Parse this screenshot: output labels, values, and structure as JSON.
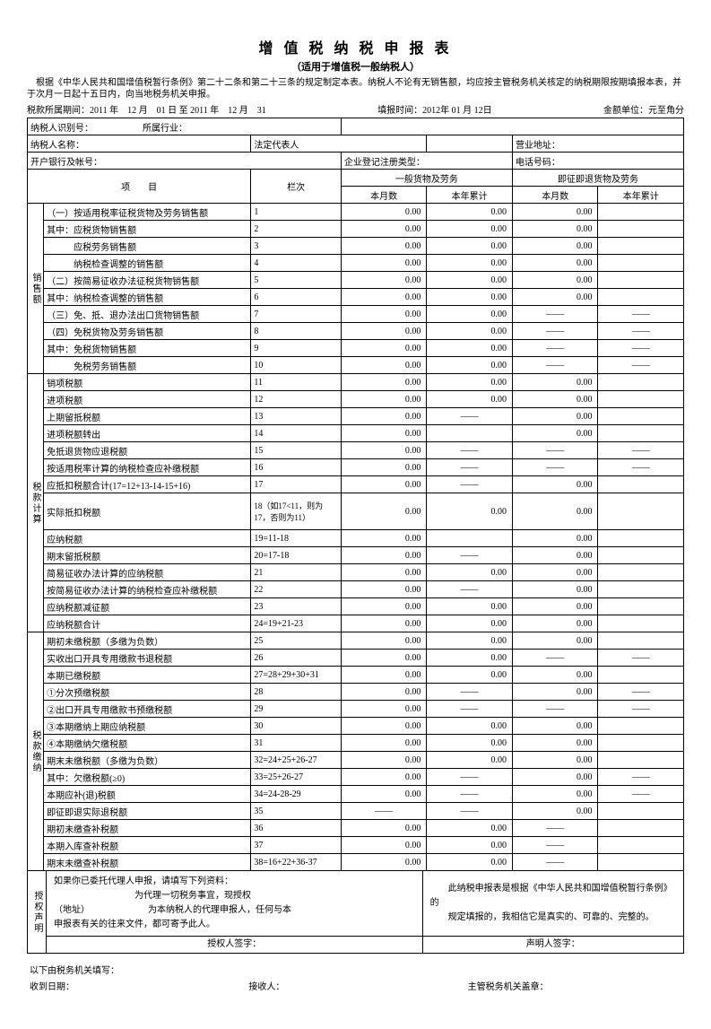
{
  "title": "增 值 税 纳 税 申 报 表",
  "subtitle": "（适用于增值税一般纳税人）",
  "intro": "根据《中华人民共和国增值税暂行条例》第二十二条和第二十三条的规定制定本表。纳税人不论有无销售额，均应按主管税务机关核定的纳税期限按期填报本表，并于次月一日起十五日内，向当地税务机关申报。",
  "period_label": "税款所属期间：",
  "period_value": "2011 年　12 月　01 日 至 2011 年　12 月　31",
  "fill_label": "填报时间：",
  "fill_value": "2012年 01 月 12日",
  "unit_label": "金额单位：元至角分",
  "taxpayer_id_label": "纳税人识别号：",
  "industry_label": "所属行业：",
  "taxpayer_name_label": "纳税人名称：",
  "legal_rep_label": "法定代表人",
  "biz_addr_label": "营业地址：",
  "bank_label": "开户银行及帐号：",
  "reg_type_label": "企业登记注册类型：",
  "phone_label": "电话号码：",
  "col_item": "项　　目",
  "col_lanci": "栏次",
  "col_group1": "一般货物及劳务",
  "col_group2": "即征即退货物及劳务",
  "col_month": "本月数",
  "col_year": "本年累计",
  "sec_sales": "销售额",
  "sec_taxcalc": "税款计算",
  "sec_taxpay": "税款缴纳",
  "dash": "——",
  "rows": [
    {
      "label": "（一）按适用税率征税货物及劳务销售额",
      "lc": "1",
      "v": [
        "0.00",
        "0.00",
        "0.00",
        ""
      ]
    },
    {
      "label": "其中：应税货物销售额",
      "lc": "2",
      "v": [
        "0.00",
        "0.00",
        "0.00",
        ""
      ]
    },
    {
      "label": "　　　应税劳务销售额",
      "lc": "3",
      "v": [
        "0.00",
        "0.00",
        "0.00",
        ""
      ]
    },
    {
      "label": "　　　纳税检查调整的销售额",
      "lc": "4",
      "v": [
        "0.00",
        "0.00",
        "0.00",
        ""
      ]
    },
    {
      "label": "（二）按简易征收办法征税货物销售额",
      "lc": "5",
      "v": [
        "0.00",
        "0.00",
        "0.00",
        ""
      ]
    },
    {
      "label": "其中：纳税检查调整的销售额",
      "lc": "6",
      "v": [
        "0.00",
        "0.00",
        "0.00",
        ""
      ]
    },
    {
      "label": "（三）免、抵、退办法出口货物销售额",
      "lc": "7",
      "v": [
        "0.00",
        "0.00",
        "——",
        "——"
      ]
    },
    {
      "label": "（四）免税货物及劳务销售额",
      "lc": "8",
      "v": [
        "0.00",
        "0.00",
        "——",
        "——"
      ]
    },
    {
      "label": "其中：免税货物销售额",
      "lc": "9",
      "v": [
        "0.00",
        "0.00",
        "——",
        "——"
      ]
    },
    {
      "label": "　　　免税劳务销售额",
      "lc": "10",
      "v": [
        "0.00",
        "0.00",
        "——",
        "——"
      ]
    },
    {
      "label": "销项税额",
      "lc": "11",
      "v": [
        "0.00",
        "0.00",
        "0.00",
        ""
      ]
    },
    {
      "label": "进项税额",
      "lc": "12",
      "v": [
        "0.00",
        "0.00",
        "0.00",
        ""
      ]
    },
    {
      "label": "上期留抵税额",
      "lc": "13",
      "v": [
        "0.00",
        "——",
        "0.00",
        ""
      ]
    },
    {
      "label": "进项税额转出",
      "lc": "14",
      "v": [
        "0.00",
        "",
        "0.00",
        ""
      ]
    },
    {
      "label": "免抵退货物应退税额",
      "lc": "15",
      "v": [
        "0.00",
        "——",
        "——",
        "——"
      ]
    },
    {
      "label": "按适用税率计算的纳税检查应补缴税额",
      "lc": "16",
      "v": [
        "0.00",
        "——",
        "——",
        "——"
      ]
    },
    {
      "label": "应抵扣税额合计(17=12+13-14-15+16)",
      "lc": "17",
      "v": [
        "0.00",
        "——",
        "0.00",
        ""
      ]
    },
    {
      "label": "实际抵扣税额",
      "lc": "18（如17<11，则为17，否则为11）",
      "v": [
        "0.00",
        "0.00",
        "0.00",
        ""
      ],
      "tall": true
    },
    {
      "label": "应纳税额",
      "lc": "19=11-18",
      "v": [
        "0.00",
        "",
        "0.00",
        ""
      ]
    },
    {
      "label": "期末留抵税额",
      "lc": "20=17-18",
      "v": [
        "0.00",
        "——",
        "0.00",
        ""
      ]
    },
    {
      "label": "简易征收办法计算的应纳税额",
      "lc": "21",
      "v": [
        "0.00",
        "0.00",
        "0.00",
        ""
      ]
    },
    {
      "label": "按简易征收办法计算的纳税检查应补缴税额",
      "lc": "22",
      "v": [
        "0.00",
        "——",
        "0.00",
        ""
      ]
    },
    {
      "label": "应纳税额减征额",
      "lc": "23",
      "v": [
        "0.00",
        "0.00",
        "0.00",
        ""
      ]
    },
    {
      "label": "应纳税额合计",
      "lc": "24=19+21-23",
      "v": [
        "0.00",
        "0.00",
        "0.00",
        ""
      ]
    },
    {
      "label": "期初未缴税额（多缴为负数）",
      "lc": "25",
      "v": [
        "0.00",
        "0.00",
        "0.00",
        ""
      ]
    },
    {
      "label": "实收出口开具专用缴款书退税额",
      "lc": "26",
      "v": [
        "0.00",
        "0.00",
        "——",
        "——"
      ]
    },
    {
      "label": "本期已缴税额",
      "lc": "27=28+29+30+31",
      "v": [
        "0.00",
        "0.00",
        "0.00",
        ""
      ]
    },
    {
      "label": "①分次预缴税额",
      "lc": "28",
      "v": [
        "0.00",
        "——",
        "0.00",
        "——"
      ]
    },
    {
      "label": "②出口开具专用缴款书预缴税额",
      "lc": "29",
      "v": [
        "0.00",
        "——",
        "——",
        "——"
      ]
    },
    {
      "label": "③本期缴纳上期应纳税额",
      "lc": "30",
      "v": [
        "0.00",
        "0.00",
        "0.00",
        ""
      ]
    },
    {
      "label": "④本期缴纳欠缴税额",
      "lc": "31",
      "v": [
        "0.00",
        "0.00",
        "0.00",
        ""
      ]
    },
    {
      "label": "期末未缴税额（多缴为负数）",
      "lc": "32=24+25+26-27",
      "v": [
        "0.00",
        "0.00",
        "0.00",
        ""
      ]
    },
    {
      "label": "其中：欠缴税额(≥0)",
      "lc": "33=25+26-27",
      "v": [
        "0.00",
        "——",
        "0.00",
        "——"
      ]
    },
    {
      "label": "本期应补(退)税额",
      "lc": "34=24-28-29",
      "v": [
        "0.00",
        "——",
        "0.00",
        "——"
      ]
    },
    {
      "label": "即征即退实际退税额",
      "lc": "35",
      "v": [
        "——",
        "——",
        "0.00",
        ""
      ]
    },
    {
      "label": "期初未缴查补税额",
      "lc": "36",
      "v": [
        "0.00",
        "0.00",
        "——",
        ""
      ]
    },
    {
      "label": "本期入库查补税额",
      "lc": "37",
      "v": [
        "0.00",
        "0.00",
        "——",
        ""
      ]
    },
    {
      "label": "期末未缴查补税额",
      "lc": "38=16+22+36-37",
      "v": [
        "0.00",
        "0.00",
        "——",
        ""
      ]
    }
  ],
  "auth_label": "授权声明",
  "auth_text1": "如果你已委托代理人申报，请填写下列资料：",
  "auth_text2": "为代理一切税务事宜，现授权",
  "auth_text3": "（地址）　　　　　　　为本纳税人的代理申报人，任何与本",
  "auth_text4": "申报表有关的往来文件，都可寄予此人。",
  "decl_text1": "此纳税申报表是根据《中华人民共和国增值税暂行条例》的",
  "decl_text2": "规定填报的，我相信它是真实的、可靠的、完整的。",
  "auth_sign": "授权人签字：",
  "decl_sign": "声明人签字：",
  "tax_fill_label": "以下由税务机关填写：",
  "recv_date_label": "收到日期：",
  "receiver_label": "接收人：",
  "stamp_label": "主管税务机关盖章："
}
